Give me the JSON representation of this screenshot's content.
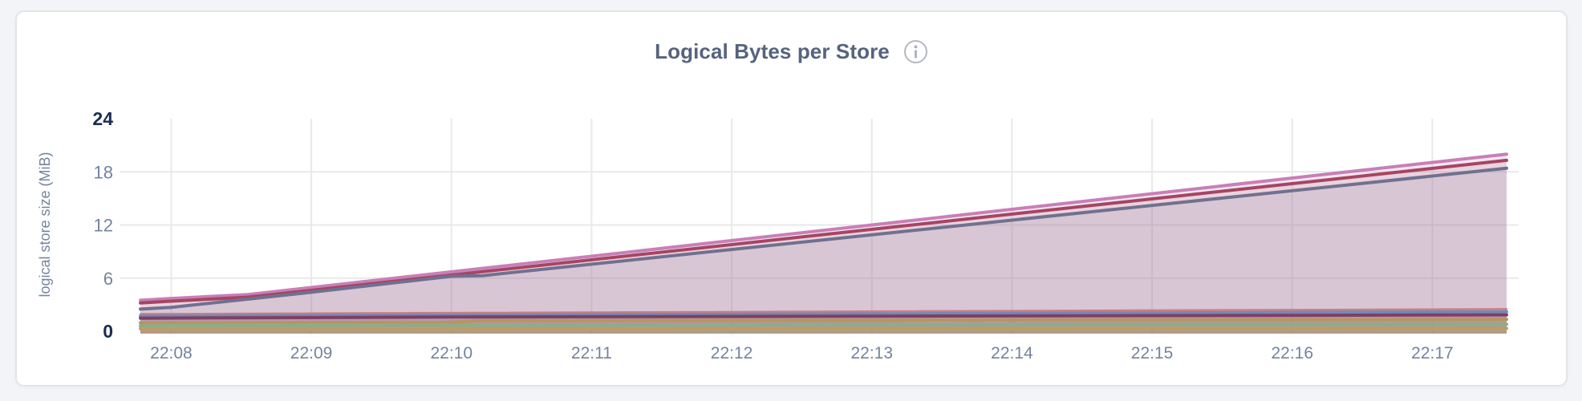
{
  "page": {
    "background_color": "#f3f4f8",
    "card_background": "#ffffff",
    "card_border_color": "#e3e4e8"
  },
  "header": {
    "title": "Logical Bytes per Store",
    "info_icon": "info-circle",
    "title_color": "#55637e",
    "info_icon_color": "#b4b8c1"
  },
  "chart_data": {
    "type": "area",
    "title": "Logical Bytes per Store",
    "xlabel": "",
    "ylabel": "logical store size (MiB)",
    "ylim": [
      0,
      24
    ],
    "x_unit": "minutes after 22:00",
    "x_range": [
      7.78,
      17.53
    ],
    "grid": true,
    "legend_position": "none",
    "colors": {
      "gridline": "#e9e9ec",
      "tick_label": "#74839f",
      "tick_label_bold": "#1b2d52",
      "axis_title": "#74839f"
    },
    "y_ticks": [
      {
        "value": 24,
        "label": "24",
        "bold": true,
        "gridline": false
      },
      {
        "value": 18,
        "label": "18",
        "bold": false,
        "gridline": true
      },
      {
        "value": 12,
        "label": "12",
        "bold": false,
        "gridline": true
      },
      {
        "value": 6,
        "label": "6",
        "bold": false,
        "gridline": true
      },
      {
        "value": 0,
        "label": "0",
        "bold": true,
        "gridline": false
      }
    ],
    "x_ticks": [
      {
        "value": 8,
        "label": "22:08"
      },
      {
        "value": 9,
        "label": "22:09"
      },
      {
        "value": 10,
        "label": "22:10"
      },
      {
        "value": 11,
        "label": "22:11"
      },
      {
        "value": 12,
        "label": "22:12"
      },
      {
        "value": 13,
        "label": "22:13"
      },
      {
        "value": 14,
        "label": "22:14"
      },
      {
        "value": 15,
        "label": "22:15"
      },
      {
        "value": 16,
        "label": "22:16"
      },
      {
        "value": 17,
        "label": "22:17"
      }
    ],
    "series": [
      {
        "name": "line-orchid",
        "color": "#c87fb8",
        "fill_opacity": 0.18,
        "stroke_width": 4,
        "points": [
          [
            7.78,
            3.5
          ],
          [
            8,
            3.7
          ],
          [
            8.55,
            4.15
          ],
          [
            17.53,
            20.0
          ]
        ]
      },
      {
        "name": "line-crimson",
        "color": "#a64562",
        "fill_opacity": 0.13,
        "stroke_width": 4,
        "points": [
          [
            7.78,
            3.2
          ],
          [
            8,
            3.4
          ],
          [
            8.55,
            3.85
          ],
          [
            17.53,
            19.3
          ]
        ]
      },
      {
        "name": "line-slate",
        "color": "#6f7190",
        "fill_opacity": 0.13,
        "stroke_width": 4,
        "points": [
          [
            7.78,
            2.5
          ],
          [
            8,
            2.7
          ],
          [
            9,
            4.4
          ],
          [
            10,
            6.2
          ],
          [
            10.22,
            6.28
          ],
          [
            17.53,
            18.4
          ]
        ]
      },
      {
        "name": "line-salmon",
        "color": "#cf7d7d",
        "fill_opacity": 0.14,
        "stroke_width": 2.5,
        "points": [
          [
            7.78,
            1.95
          ],
          [
            17.53,
            2.5
          ]
        ]
      },
      {
        "name": "line-blue",
        "color": "#7289b7",
        "fill_opacity": 0.2,
        "stroke_width": 4,
        "points": [
          [
            7.78,
            1.7
          ],
          [
            17.53,
            2.2
          ]
        ]
      },
      {
        "name": "line-maroon",
        "color": "#7e3f66",
        "fill_opacity": 0.2,
        "stroke_width": 4,
        "points": [
          [
            7.78,
            1.48
          ],
          [
            10,
            1.6
          ],
          [
            17.53,
            1.85
          ]
        ]
      },
      {
        "name": "line-gold",
        "color": "#b9945e",
        "fill_opacity": 0.24,
        "stroke_width": 4,
        "points": [
          [
            7.78,
            0.95
          ],
          [
            10,
            1.02
          ],
          [
            10.18,
            1.2
          ],
          [
            17.53,
            1.35
          ]
        ]
      },
      {
        "name": "line-green",
        "color": "#88ae8c",
        "fill_opacity": 0.24,
        "stroke_width": 4,
        "points": [
          [
            7.78,
            0.6
          ],
          [
            8.6,
            0.68
          ],
          [
            17.53,
            0.8
          ]
        ]
      },
      {
        "name": "line-tan",
        "color": "#c19b63",
        "fill_opacity": 0.28,
        "stroke_width": 4,
        "points": [
          [
            7.78,
            0.28
          ],
          [
            17.53,
            0.33
          ]
        ]
      }
    ]
  }
}
